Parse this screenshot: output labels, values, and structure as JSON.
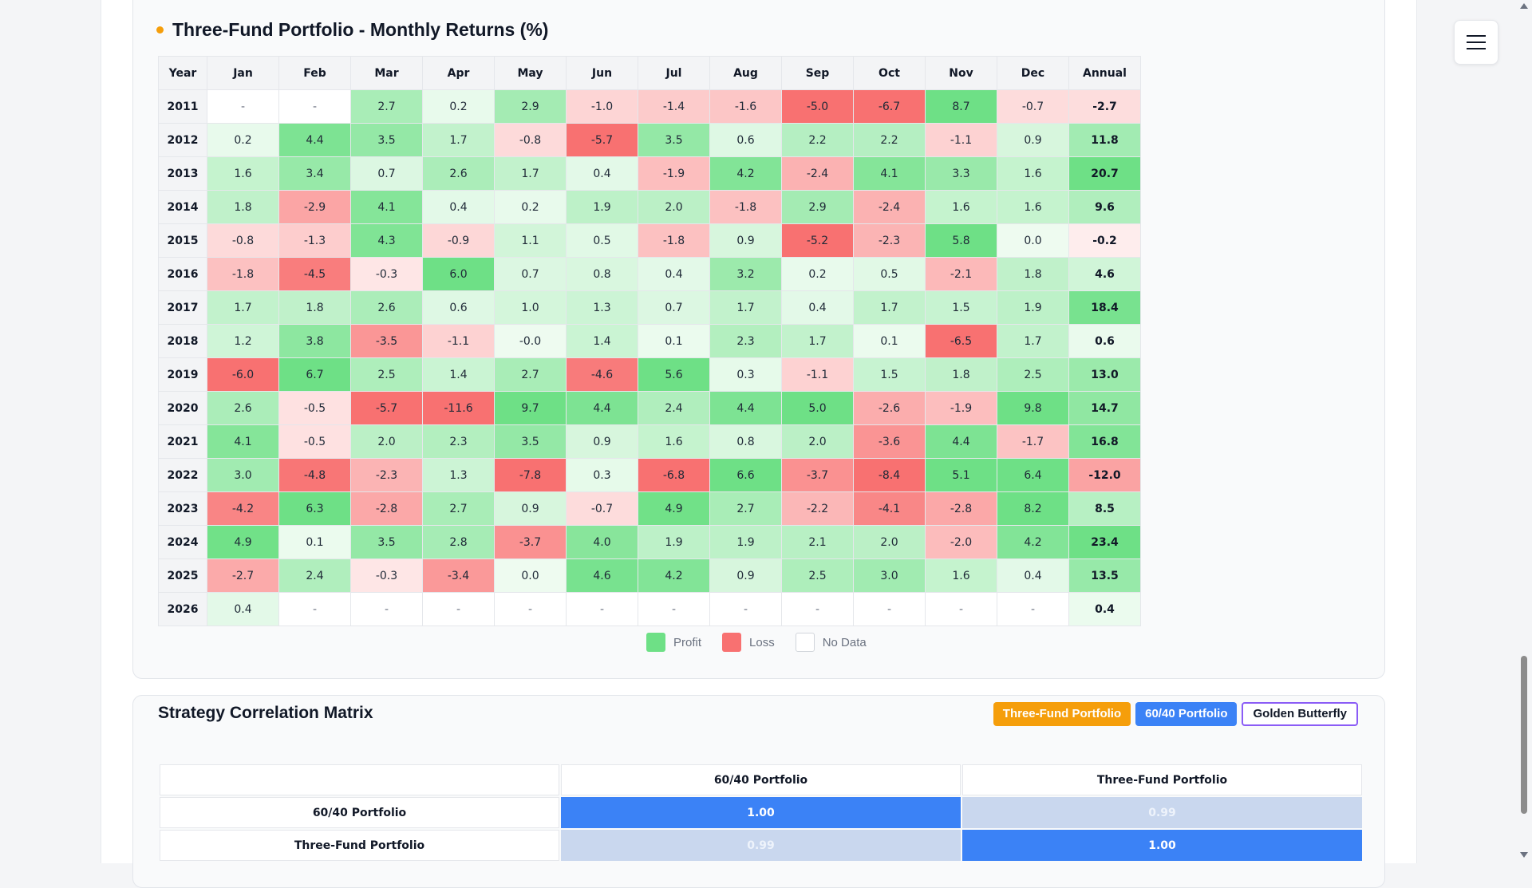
{
  "heatmap": {
    "title": "Three-Fund Portfolio - Monthly Returns (%)",
    "headers": [
      "Year",
      "Jan",
      "Feb",
      "Mar",
      "Apr",
      "May",
      "Jun",
      "Jul",
      "Aug",
      "Sep",
      "Oct",
      "Nov",
      "Dec",
      "Annual"
    ],
    "rows": [
      {
        "year": "2011",
        "values": [
          "-",
          "-",
          "2.7",
          "0.2",
          "2.9",
          "-1.0",
          "-1.4",
          "-1.6",
          "-5.0",
          "-6.7",
          "8.7",
          "-0.7"
        ],
        "annual": "-2.7"
      },
      {
        "year": "2012",
        "values": [
          "0.2",
          "4.4",
          "3.5",
          "1.7",
          "-0.8",
          "-5.7",
          "3.5",
          "0.6",
          "2.2",
          "2.2",
          "-1.1",
          "0.9"
        ],
        "annual": "11.8"
      },
      {
        "year": "2013",
        "values": [
          "1.6",
          "3.4",
          "0.7",
          "2.6",
          "1.7",
          "0.4",
          "-1.9",
          "4.2",
          "-2.4",
          "4.1",
          "3.3",
          "1.6"
        ],
        "annual": "20.7"
      },
      {
        "year": "2014",
        "values": [
          "1.8",
          "-2.9",
          "4.1",
          "0.4",
          "0.2",
          "1.9",
          "2.0",
          "-1.8",
          "2.9",
          "-2.4",
          "1.6",
          "1.6"
        ],
        "annual": "9.6"
      },
      {
        "year": "2015",
        "values": [
          "-0.8",
          "-1.3",
          "4.3",
          "-0.9",
          "1.1",
          "0.5",
          "-1.8",
          "0.9",
          "-5.2",
          "-2.3",
          "5.8",
          "0.0"
        ],
        "annual": "-0.2"
      },
      {
        "year": "2016",
        "values": [
          "-1.8",
          "-4.5",
          "-0.3",
          "6.0",
          "0.7",
          "0.8",
          "0.4",
          "3.2",
          "0.2",
          "0.5",
          "-2.1",
          "1.8"
        ],
        "annual": "4.6"
      },
      {
        "year": "2017",
        "values": [
          "1.7",
          "1.8",
          "2.6",
          "0.6",
          "1.0",
          "1.3",
          "0.7",
          "1.7",
          "0.4",
          "1.7",
          "1.5",
          "1.9"
        ],
        "annual": "18.4"
      },
      {
        "year": "2018",
        "values": [
          "1.2",
          "3.8",
          "-3.5",
          "-1.1",
          "-0.0",
          "1.4",
          "0.1",
          "2.3",
          "1.7",
          "0.1",
          "-6.5",
          "1.7"
        ],
        "annual": "0.6"
      },
      {
        "year": "2019",
        "values": [
          "-6.0",
          "6.7",
          "2.5",
          "1.4",
          "2.7",
          "-4.6",
          "5.6",
          "0.3",
          "-1.1",
          "1.5",
          "1.8",
          "2.5"
        ],
        "annual": "13.0"
      },
      {
        "year": "2020",
        "values": [
          "2.6",
          "-0.5",
          "-5.7",
          "-11.6",
          "9.7",
          "4.4",
          "2.4",
          "4.4",
          "5.0",
          "-2.6",
          "-1.9",
          "9.8"
        ],
        "annual": "14.7"
      },
      {
        "year": "2021",
        "values": [
          "4.1",
          "-0.5",
          "2.0",
          "2.3",
          "3.5",
          "0.9",
          "1.6",
          "0.8",
          "2.0",
          "-3.6",
          "4.4",
          "-1.7"
        ],
        "annual": "16.8"
      },
      {
        "year": "2022",
        "values": [
          "3.0",
          "-4.8",
          "-2.3",
          "1.3",
          "-7.8",
          "0.3",
          "-6.8",
          "6.6",
          "-3.7",
          "-8.4",
          "5.1",
          "6.4"
        ],
        "annual": "-12.0"
      },
      {
        "year": "2023",
        "values": [
          "-4.2",
          "6.3",
          "-2.8",
          "2.7",
          "0.9",
          "-0.7",
          "4.9",
          "2.7",
          "-2.2",
          "-4.1",
          "-2.8",
          "8.2"
        ],
        "annual": "8.5"
      },
      {
        "year": "2024",
        "values": [
          "4.9",
          "0.1",
          "3.5",
          "2.8",
          "-3.7",
          "4.0",
          "1.9",
          "1.9",
          "2.1",
          "2.0",
          "-2.0",
          "4.2"
        ],
        "annual": "23.4"
      },
      {
        "year": "2025",
        "values": [
          "-2.7",
          "2.4",
          "-0.3",
          "-3.4",
          "0.0",
          "4.6",
          "4.2",
          "0.9",
          "2.5",
          "3.0",
          "1.6",
          "0.4"
        ],
        "annual": "13.5"
      },
      {
        "year": "2026",
        "values": [
          "0.4",
          "-",
          "-",
          "-",
          "-",
          "-",
          "-",
          "-",
          "-",
          "-",
          "-",
          "-"
        ],
        "annual": "0.4"
      }
    ],
    "legend": [
      "Profit",
      "Loss",
      "No Data"
    ],
    "colors": {
      "profit": "#6ee086",
      "loss": "#f87171",
      "nodata": "#ffffff"
    }
  },
  "correlation": {
    "title": "Strategy Correlation Matrix",
    "strategies": [
      "Three-Fund Portfolio",
      "60/40 Portfolio",
      "Golden Butterfly"
    ],
    "strategy_colors": [
      "#f59e0b",
      "#3b82f6",
      "#8b5cf6"
    ],
    "columns": [
      "60/40 Portfolio",
      "Three-Fund Portfolio"
    ],
    "rows": [
      {
        "label": "60/40 Portfolio",
        "values": [
          "1.00",
          "0.99"
        ]
      },
      {
        "label": "Three-Fund Portfolio",
        "values": [
          "0.99",
          "1.00"
        ]
      }
    ]
  },
  "menu": {
    "icon": "hamburger-menu-icon"
  }
}
